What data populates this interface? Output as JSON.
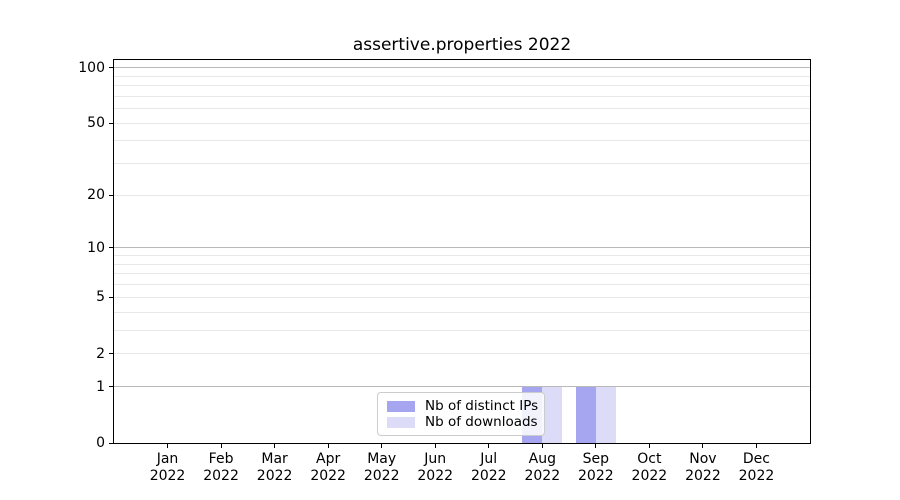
{
  "chart_data": {
    "type": "bar",
    "title": "assertive.properties 2022",
    "x_tick_year": "2022",
    "categories": [
      "Jan",
      "Feb",
      "Mar",
      "Apr",
      "May",
      "Jun",
      "Jul",
      "Aug",
      "Sep",
      "Oct",
      "Nov",
      "Dec"
    ],
    "series": [
      {
        "name": "Nb of distinct IPs",
        "color": "#a5a5f0",
        "values": [
          0,
          0,
          0,
          0,
          0,
          0,
          0,
          1,
          1,
          0,
          0,
          0
        ]
      },
      {
        "name": "Nb of downloads",
        "color": "#dcdcf8",
        "values": [
          0,
          0,
          0,
          0,
          0,
          0,
          0,
          1,
          1,
          0,
          0,
          0
        ]
      }
    ],
    "y_scale": "log10(1+y)",
    "y_axis": {
      "ticks": [
        0,
        1,
        2,
        5,
        10,
        20,
        50,
        100
      ],
      "major_gridlines": [
        1,
        10,
        100
      ],
      "minor_gridlines": [
        2,
        3,
        4,
        5,
        6,
        7,
        8,
        9,
        20,
        30,
        40,
        50,
        60,
        70,
        80,
        90
      ],
      "min": 0,
      "max": 110
    },
    "grid": "horizontal",
    "legend_position": "lower center"
  }
}
